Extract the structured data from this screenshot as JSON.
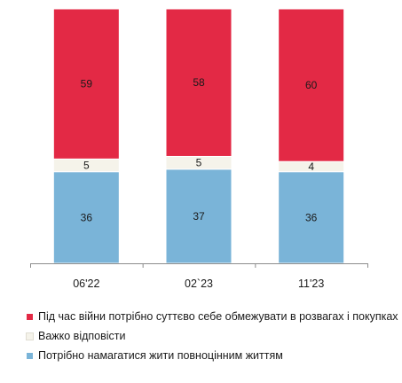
{
  "chart_data": {
    "type": "bar",
    "stacked": true,
    "categories": [
      "06'22",
      "02`23",
      "11'23"
    ],
    "series": [
      {
        "name": "Потрібно намагатися жити повноцінним життям",
        "color": "#7ab4d8",
        "values": [
          36,
          37,
          36
        ]
      },
      {
        "name": "Важко відповісти",
        "color": "#f5f3ea",
        "values": [
          5,
          5,
          4
        ]
      },
      {
        "name": "Під час війни потрібно суттєво себе обмежувати в розвагах і покупках",
        "color": "#e32945",
        "values": [
          59,
          58,
          60
        ]
      }
    ],
    "ylim": [
      0,
      100
    ],
    "grid": false,
    "legend_position": "bottom"
  },
  "legend": {
    "items": [
      {
        "label": "Під час війни потрібно суттєво себе обмежувати в розвагах і покупках",
        "color": "#e32945"
      },
      {
        "label": "Важко відповісти",
        "color": "#f5f3ea"
      },
      {
        "label": "Потрібно намагатися жити повноцінним життям",
        "color": "#7ab4d8"
      }
    ]
  }
}
